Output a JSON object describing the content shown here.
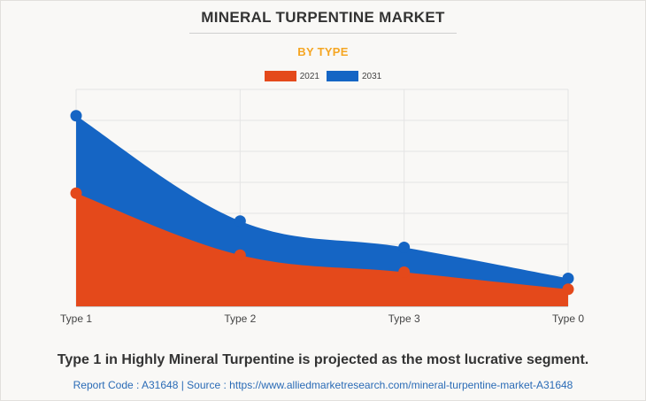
{
  "title": "MINERAL TURPENTINE MARKET",
  "subtitle": "BY TYPE",
  "caption": "Type 1 in Highly Mineral Turpentine is projected as the most lucrative segment.",
  "source": "Report Code : A31648  |  Source : https://www.alliedmarketresearch.com/mineral-turpentine-market-A31648",
  "colors": {
    "series_2021": "#e4491b",
    "series_2031": "#1565c4",
    "subtitle": "#f5a623"
  },
  "chart_data": {
    "type": "area",
    "categories": [
      "Type 1",
      "Type 2",
      "Type 3",
      "Type 0"
    ],
    "series": [
      {
        "name": "2021",
        "values": [
          36.5,
          16.5,
          11,
          5.5
        ],
        "color": "#e4491b"
      },
      {
        "name": "2031",
        "values": [
          61.5,
          27.5,
          19,
          9
        ],
        "color": "#1565c4"
      }
    ],
    "ylim": [
      0,
      70
    ],
    "grid": true,
    "legend": "top-center",
    "ytick_labels_shown": false
  }
}
